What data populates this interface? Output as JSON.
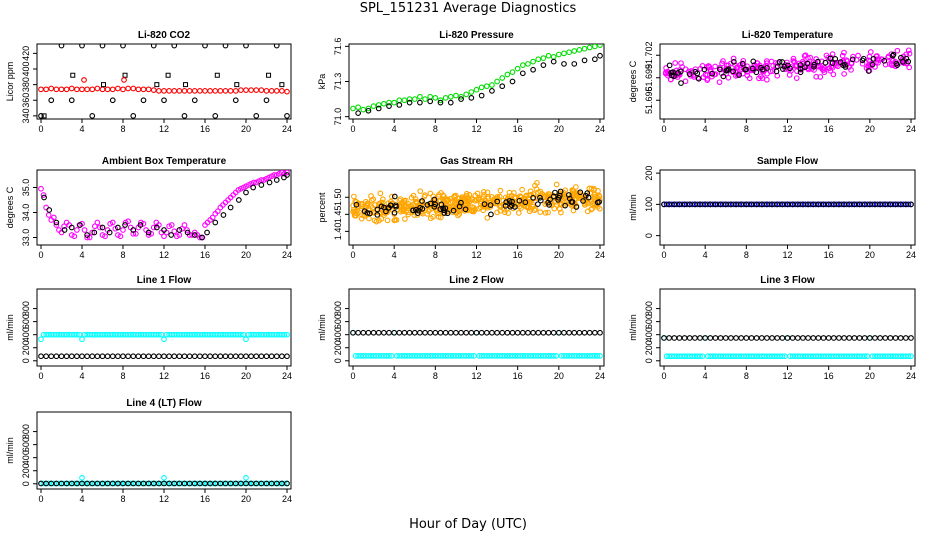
{
  "page": {
    "title": "SPL_151231  Average Diagnostics",
    "xlabel": "Hour of Day (UTC)"
  },
  "colors": {
    "black": "#000000",
    "red": "#ff0000",
    "green": "#00dd00",
    "magenta": "#ff00ff",
    "orange": "#ffa500",
    "cyan": "#00ffff",
    "blue": "#0000cc"
  },
  "chart_data": [
    {
      "id": "co2",
      "type": "scatter",
      "title": "Li-820 CO2",
      "ylabel": "Licor ppm",
      "xlim": [
        0,
        24
      ],
      "ylim": [
        336,
        432
      ],
      "xticks": [
        "0",
        "4",
        "8",
        "12",
        "16",
        "20",
        "24"
      ],
      "yticks": [
        "340",
        "360",
        "380",
        "400",
        "420"
      ],
      "series": [
        {
          "color": "red",
          "x": [
            0,
            0.5,
            1,
            1.5,
            2,
            2.5,
            3,
            3.5,
            4,
            4.5,
            5,
            5.5,
            6,
            6.5,
            7,
            7.5,
            8,
            8.5,
            9,
            9.5,
            10,
            10.5,
            11,
            11.5,
            12,
            12.5,
            13,
            13.5,
            14,
            14.5,
            15,
            15.5,
            16,
            16.5,
            17,
            17.5,
            18,
            18.5,
            19,
            19.5,
            20,
            20.5,
            21,
            21.5,
            22,
            22.5,
            23,
            23.5,
            24
          ],
          "y": [
            374,
            374,
            375,
            374,
            374,
            374,
            375,
            374,
            374,
            374,
            374,
            375,
            374,
            374,
            374,
            375,
            374,
            375,
            375,
            374,
            374,
            374,
            373,
            372,
            372,
            372,
            372,
            372,
            372,
            372,
            372,
            372,
            372,
            372,
            372,
            372,
            372,
            372,
            372,
            373,
            373,
            373,
            373,
            373,
            372,
            372,
            372,
            372,
            371
          ]
        },
        {
          "color": "black",
          "marker": "square",
          "x": [
            0.3,
            3.1,
            6.1,
            8.2,
            11.3,
            12.4,
            14.1,
            17.2,
            19.1,
            22.2,
            23.5
          ],
          "y": [
            340,
            392,
            380,
            392,
            380,
            392,
            380,
            392,
            380,
            392,
            380
          ]
        },
        {
          "color": "black",
          "x": [
            0,
            1,
            2,
            3,
            4,
            5,
            6,
            7,
            8,
            9,
            10,
            11,
            12,
            13,
            14,
            15,
            16,
            17,
            18,
            19,
            20,
            21,
            22,
            23,
            24
          ],
          "y": [
            340,
            360,
            430,
            360,
            430,
            340,
            430,
            360,
            430,
            340,
            360,
            430,
            360,
            430,
            340,
            360,
            430,
            340,
            430,
            360,
            430,
            340,
            360,
            430,
            340
          ]
        },
        {
          "color": "red",
          "x": [
            4.2,
            8.1
          ],
          "y": [
            386,
            386
          ]
        }
      ]
    },
    {
      "id": "pressure",
      "type": "scatter",
      "title": "Li-820 Pressure",
      "ylabel": "kPa",
      "xlim": [
        0,
        24
      ],
      "ylim": [
        70.98,
        71.62
      ],
      "xticks": [
        "0",
        "4",
        "8",
        "12",
        "16",
        "20",
        "24"
      ],
      "yticks": [
        "71.0",
        "71.3",
        "71.6"
      ],
      "series": [
        {
          "color": "green",
          "x": [
            0,
            0.5,
            1,
            1.5,
            2,
            2.5,
            3,
            3.5,
            4,
            4.5,
            5,
            5.5,
            6,
            6.5,
            7,
            7.5,
            8,
            8.5,
            9,
            9.5,
            10,
            10.5,
            11,
            11.5,
            12,
            12.5,
            13,
            13.5,
            14,
            14.5,
            15,
            15.5,
            16,
            16.5,
            17,
            17.5,
            18,
            18.5,
            19,
            19.5,
            20,
            20.5,
            21,
            21.5,
            22,
            22.5,
            23,
            23.5,
            24
          ],
          "y": [
            71.07,
            71.08,
            71.06,
            71.07,
            71.09,
            71.1,
            71.11,
            71.12,
            71.12,
            71.14,
            71.14,
            71.15,
            71.15,
            71.17,
            71.15,
            71.17,
            71.16,
            71.14,
            71.16,
            71.17,
            71.18,
            71.17,
            71.19,
            71.21,
            71.23,
            71.25,
            71.26,
            71.27,
            71.3,
            71.33,
            71.36,
            71.38,
            71.41,
            71.44,
            71.45,
            71.47,
            71.49,
            71.5,
            71.52,
            71.51,
            71.53,
            71.54,
            71.55,
            71.56,
            71.57,
            71.58,
            71.59,
            71.6,
            71.61
          ]
        },
        {
          "color": "black",
          "x": [
            0.5,
            1.5,
            2.5,
            3.5,
            4.5,
            5.5,
            6.5,
            7.5,
            8.5,
            9.5,
            10.5,
            11.5,
            12.5,
            13.5,
            14.5,
            15.5,
            16.5,
            17.5,
            18.5,
            19.5,
            20.5,
            21.5,
            22.5,
            23.5,
            24
          ],
          "y": [
            71.03,
            71.05,
            71.07,
            71.09,
            71.1,
            71.12,
            71.12,
            71.13,
            71.12,
            71.12,
            71.15,
            71.16,
            71.18,
            71.22,
            71.26,
            71.3,
            71.37,
            71.4,
            71.44,
            71.47,
            71.45,
            71.45,
            71.48,
            71.49,
            71.52
          ]
        }
      ]
    },
    {
      "id": "licor-temp",
      "type": "scatter",
      "title": "Li-820 Temperature",
      "ylabel": "degrees C",
      "xlim": [
        0,
        24
      ],
      "ylim": [
        51.6935,
        51.7035
      ],
      "xticks": [
        "0",
        "4",
        "8",
        "12",
        "16",
        "20",
        "24"
      ],
      "yticks": [
        "51.696",
        "51.699",
        "51.702"
      ],
      "series": [
        {
          "color": "magenta",
          "generate": {
            "n": 260,
            "base_start": 51.6995,
            "base_end": 51.7015,
            "spread": 0.0033,
            "seed": 7
          }
        },
        {
          "color": "black",
          "generate": {
            "n": 70,
            "base_start": 51.6995,
            "base_end": 51.7015,
            "spread": 0.0025,
            "seed": 11
          }
        }
      ]
    },
    {
      "id": "box-temp",
      "type": "scatter",
      "title": "Ambient Box Temperature",
      "ylabel": "degrees C",
      "xlim": [
        0,
        24
      ],
      "ylim": [
        32.7,
        35.7
      ],
      "xticks": [
        "0",
        "4",
        "8",
        "12",
        "16",
        "20",
        "24"
      ],
      "yticks": [
        "33.0",
        "34.0",
        "35.0"
      ],
      "series": [
        {
          "color": "magenta",
          "x": [
            0,
            0.25,
            0.5,
            0.75,
            1,
            1.25,
            1.5,
            1.75,
            2,
            2.25,
            2.5,
            2.75,
            3,
            3.25,
            3.5,
            3.75,
            4,
            4.25,
            4.5,
            4.75,
            5,
            5.25,
            5.5,
            5.75,
            6,
            6.25,
            6.5,
            6.75,
            7,
            7.25,
            7.5,
            7.75,
            8,
            8.25,
            8.5,
            8.75,
            9,
            9.25,
            9.5,
            9.75,
            10,
            10.25,
            10.5,
            10.75,
            11,
            11.25,
            11.5,
            11.75,
            12,
            12.25,
            12.5,
            12.75,
            13,
            13.25,
            13.5,
            13.75,
            14,
            14.25,
            14.5,
            14.75,
            15,
            15.25,
            15.5,
            15.75,
            16,
            16.25,
            16.5,
            16.75,
            17,
            17.25,
            17.5,
            17.75,
            18,
            18.25,
            18.5,
            18.75,
            19,
            19.25,
            19.5,
            19.75,
            20,
            20.25,
            20.5,
            20.75,
            21,
            21.25,
            21.5,
            21.75,
            22,
            22.25,
            22.5,
            22.75,
            23,
            23.25,
            23.5,
            23.75,
            24
          ],
          "y": [
            34.95,
            34.7,
            34.2,
            33.9,
            33.7,
            33.8,
            33.5,
            33.3,
            33.2,
            33.45,
            33.6,
            33.5,
            33.1,
            33.05,
            33.3,
            33.5,
            33.55,
            33.3,
            33.0,
            33.0,
            33.2,
            33.45,
            33.6,
            33.4,
            33.1,
            33.05,
            33.3,
            33.55,
            33.6,
            33.35,
            33.1,
            33.05,
            33.3,
            33.6,
            33.65,
            33.4,
            33.15,
            33.15,
            33.4,
            33.6,
            33.55,
            33.3,
            33.1,
            33.15,
            33.4,
            33.6,
            33.5,
            33.2,
            33.05,
            33.2,
            33.45,
            33.5,
            33.25,
            33.05,
            33.1,
            33.35,
            33.5,
            33.3,
            33.1,
            33.1,
            33.2,
            33.1,
            33.0,
            33.0,
            33.5,
            33.6,
            33.7,
            33.8,
            33.95,
            34.05,
            34.2,
            34.3,
            34.4,
            34.5,
            34.6,
            34.7,
            34.8,
            34.9,
            34.95,
            35.0,
            35.05,
            35.1,
            35.15,
            35.2,
            35.2,
            35.25,
            35.3,
            35.3,
            35.35,
            35.4,
            35.45,
            35.5,
            35.5,
            35.55,
            35.6,
            35.55,
            35.6
          ]
        },
        {
          "color": "black",
          "x": [
            0.3,
            0.8,
            1.5,
            2.3,
            3,
            3.8,
            4.5,
            5.2,
            6,
            6.7,
            7.5,
            8.2,
            9,
            9.7,
            10.5,
            11.3,
            12,
            12.7,
            13.5,
            14.3,
            15,
            15.7,
            16.2,
            17,
            17.8,
            18.5,
            19.3,
            20,
            20.7,
            21.5,
            22.3,
            23,
            23.7,
            24
          ],
          "y": [
            34.6,
            34.1,
            33.6,
            33.3,
            33.4,
            33.5,
            33.1,
            33.2,
            33.4,
            33.2,
            33.4,
            33.5,
            33.3,
            33.5,
            33.2,
            33.4,
            33.3,
            33.1,
            33.3,
            33.2,
            33.1,
            33.0,
            33.2,
            33.6,
            33.9,
            34.2,
            34.5,
            34.8,
            35.0,
            35.1,
            35.2,
            35.3,
            35.4,
            35.5
          ]
        }
      ]
    },
    {
      "id": "rh",
      "type": "scatter",
      "title": "Gas Stream RH",
      "ylabel": "percent",
      "xlim": [
        0,
        24
      ],
      "ylim": [
        1.36,
        1.58
      ],
      "xticks": [
        "0",
        "4",
        "8",
        "12",
        "16",
        "20",
        "24"
      ],
      "yticks": [
        "1.40",
        "1.45",
        "1.50"
      ],
      "series": [
        {
          "color": "orange",
          "generate": {
            "n": 520,
            "base_start": 1.465,
            "base_end": 1.5,
            "spread": 0.09,
            "seed": 3
          }
        },
        {
          "color": "black",
          "generate": {
            "n": 80,
            "base_start": 1.46,
            "base_end": 1.5,
            "spread": 0.07,
            "seed": 19
          }
        }
      ]
    },
    {
      "id": "sample-flow",
      "type": "scatter",
      "title": "Sample Flow",
      "ylabel": "ml/min",
      "xlim": [
        0,
        24
      ],
      "ylim": [
        -30,
        210
      ],
      "xticks": [
        "0",
        "4",
        "8",
        "12",
        "16",
        "20",
        "24"
      ],
      "yticks": [
        "0",
        "100",
        "200"
      ],
      "series": [
        {
          "color": "blue",
          "const": 100,
          "step": 0.25
        },
        {
          "color": "black",
          "const": 100,
          "step": 0.5
        }
      ]
    },
    {
      "id": "line1",
      "type": "scatter",
      "title": "Line 1 Flow",
      "ylabel": "ml/min",
      "xlim": [
        0,
        24
      ],
      "ylim": [
        -80,
        1100
      ],
      "xticks": [
        "0",
        "4",
        "8",
        "12",
        "16",
        "20",
        "24"
      ],
      "yticks": [
        "0",
        "200",
        "400",
        "600",
        "800"
      ],
      "series": [
        {
          "color": "cyan",
          "const": 400,
          "step": 0.25,
          "dips": [
            0,
            4,
            12,
            20
          ],
          "dip_value": 330
        },
        {
          "color": "black",
          "const": 70,
          "step": 0.5
        }
      ]
    },
    {
      "id": "line2",
      "type": "scatter",
      "title": "Line 2 Flow",
      "ylabel": "ml/min",
      "xlim": [
        0,
        24
      ],
      "ylim": [
        -80,
        1100
      ],
      "xticks": [
        "0",
        "4",
        "8",
        "12",
        "16",
        "20",
        "24"
      ],
      "yticks": [
        "0",
        "200",
        "400",
        "600",
        "800"
      ],
      "series": [
        {
          "color": "cyan",
          "const": 75,
          "step": 0.25,
          "dips": [
            0,
            4,
            12,
            20
          ],
          "dip_value": 430
        },
        {
          "color": "black",
          "const": 430,
          "step": 0.5
        }
      ]
    },
    {
      "id": "line3",
      "type": "scatter",
      "title": "Line 3 Flow",
      "ylabel": "ml/min",
      "xlim": [
        0,
        24
      ],
      "ylim": [
        -80,
        1100
      ],
      "xticks": [
        "0",
        "4",
        "8",
        "12",
        "16",
        "20",
        "24"
      ],
      "yticks": [
        "0",
        "200",
        "400",
        "600",
        "800"
      ],
      "series": [
        {
          "color": "cyan",
          "const": 70,
          "step": 0.25,
          "dips": [
            0,
            4,
            12,
            20
          ],
          "dip_value": 350
        },
        {
          "color": "black",
          "const": 350,
          "step": 0.5
        }
      ]
    },
    {
      "id": "line4",
      "type": "scatter",
      "title": "Line 4 (LT) Flow",
      "ylabel": "ml/min",
      "xlim": [
        0,
        24
      ],
      "ylim": [
        -80,
        1100
      ],
      "xticks": [
        "0",
        "4",
        "8",
        "12",
        "16",
        "20",
        "24"
      ],
      "yticks": [
        "0",
        "200",
        "400",
        "600",
        "800"
      ],
      "series": [
        {
          "color": "cyan",
          "const": 5,
          "step": 0.25,
          "dips": [
            4,
            12,
            20
          ],
          "dip_value": 90
        },
        {
          "color": "black",
          "const": 5,
          "step": 0.5
        }
      ]
    }
  ]
}
